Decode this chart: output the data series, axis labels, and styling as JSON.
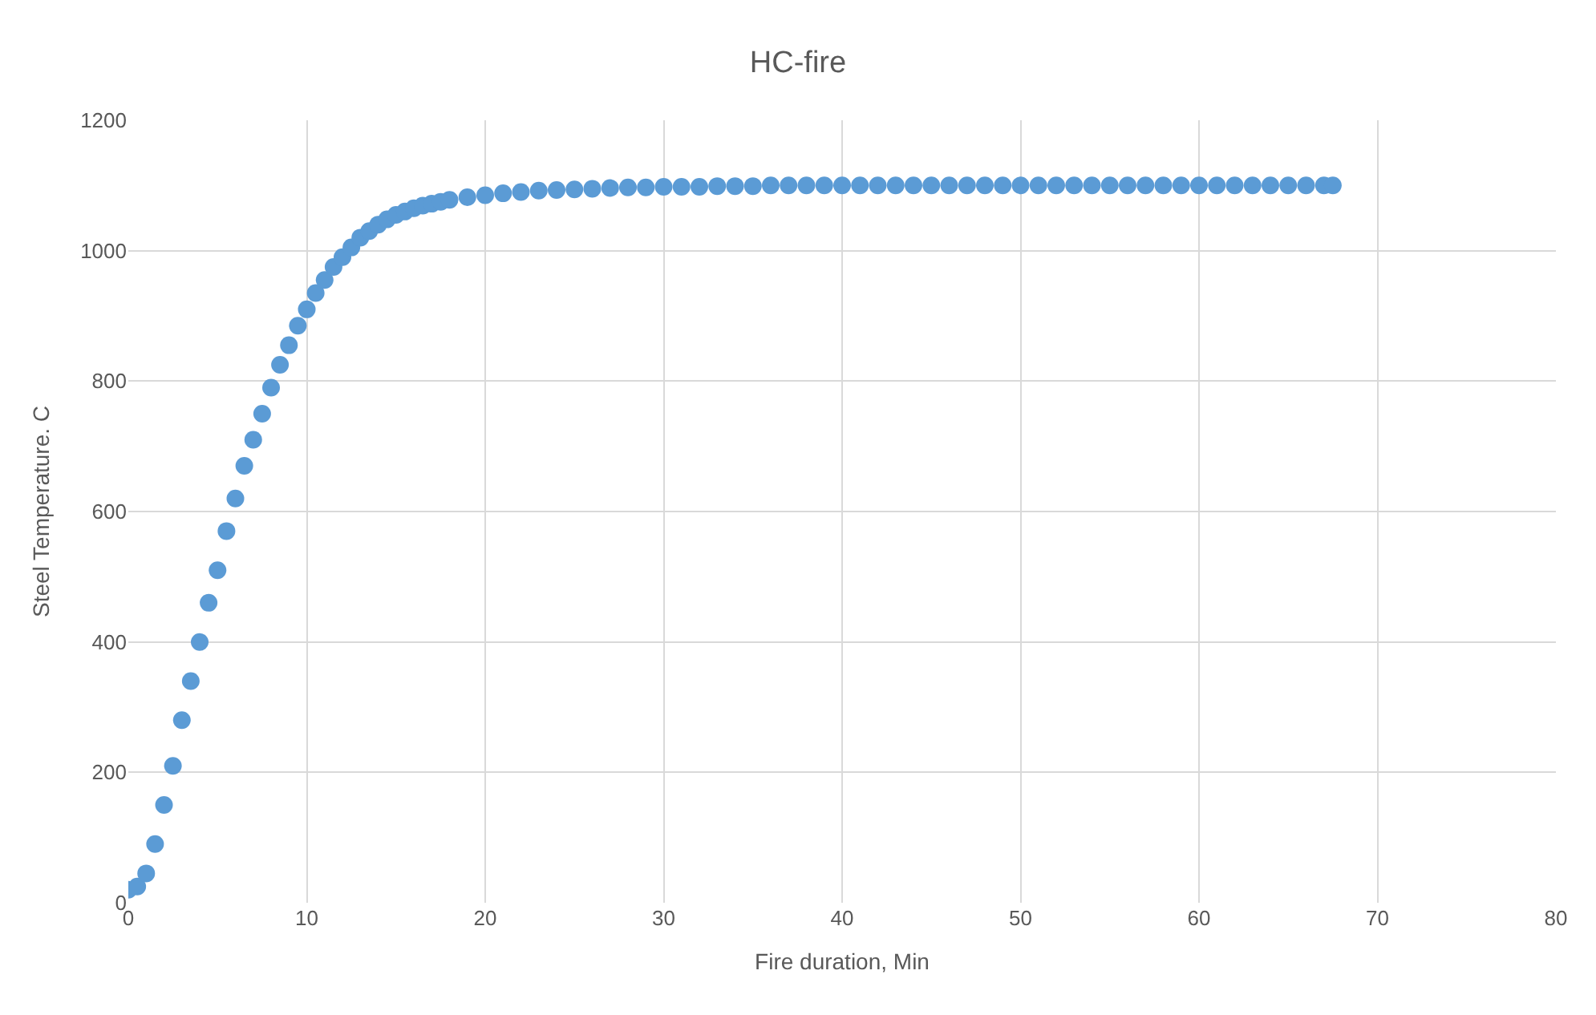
{
  "chart_data": {
    "type": "scatter",
    "title": "HC-fire",
    "xlabel": "Fire duration, Min",
    "ylabel": "Steel Temperature. C",
    "xlim": [
      0,
      80
    ],
    "xticks": [
      0,
      10,
      20,
      30,
      40,
      50,
      60,
      70,
      80
    ],
    "ylim": [
      0,
      1200
    ],
    "yticks": [
      0,
      200,
      400,
      600,
      800,
      1000,
      1200
    ],
    "grid": true,
    "marker": "circle",
    "series": [
      {
        "color": "#5b9bd5",
        "x": [
          0,
          0.5,
          1,
          1.5,
          2,
          2.5,
          3,
          3.5,
          4,
          4.5,
          5,
          5.5,
          6,
          6.5,
          7,
          7.5,
          8,
          8.5,
          9,
          9.5,
          10,
          10.5,
          11,
          11.5,
          12,
          12.5,
          13,
          13.5,
          14,
          14.5,
          15,
          15.5,
          16,
          16.5,
          17,
          17.5,
          18,
          19,
          20,
          21,
          22,
          23,
          24,
          25,
          26,
          27,
          28,
          29,
          30,
          31,
          32,
          33,
          34,
          35,
          36,
          37,
          38,
          39,
          40,
          41,
          42,
          43,
          44,
          45,
          46,
          47,
          48,
          49,
          50,
          51,
          52,
          53,
          54,
          55,
          56,
          57,
          58,
          59,
          60,
          61,
          62,
          63,
          64,
          65,
          66,
          67,
          67.5
        ],
        "values": [
          20,
          25,
          45,
          90,
          150,
          210,
          280,
          340,
          400,
          460,
          510,
          570,
          620,
          670,
          710,
          750,
          790,
          825,
          855,
          885,
          910,
          935,
          955,
          975,
          990,
          1005,
          1020,
          1030,
          1040,
          1048,
          1055,
          1060,
          1065,
          1069,
          1072,
          1075,
          1078,
          1082,
          1085,
          1088,
          1090,
          1092,
          1093,
          1094,
          1095,
          1096,
          1097,
          1097,
          1098,
          1098,
          1098,
          1099,
          1099,
          1099,
          1100,
          1100,
          1100,
          1100,
          1100,
          1100,
          1100,
          1100,
          1100,
          1100,
          1100,
          1100,
          1100,
          1100,
          1100,
          1100,
          1100,
          1100,
          1100,
          1100,
          1100,
          1100,
          1100,
          1100,
          1100,
          1100,
          1100,
          1100,
          1100,
          1100,
          1100,
          1100,
          1100
        ]
      }
    ]
  }
}
